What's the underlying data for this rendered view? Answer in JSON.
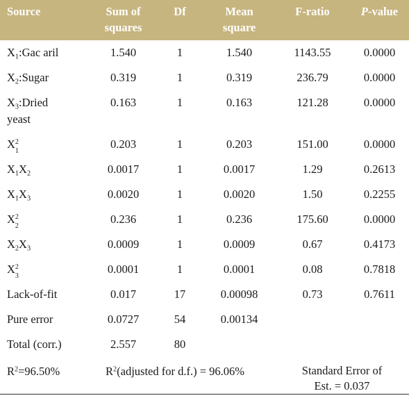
{
  "header": {
    "source": "Source",
    "ss_line1": "Sum of",
    "ss_line2": "squares",
    "df": "Df",
    "ms_line1": "Mean",
    "ms_line2": "square",
    "f": "F-ratio",
    "p_italic": "P",
    "p_rest": "-value"
  },
  "rows": [
    {
      "var": "X",
      "sub": "1",
      "rest": ":Gac aril",
      "ss": "1.540",
      "df": "1",
      "ms": "1.540",
      "f": "1143.55",
      "p": "0.0000"
    },
    {
      "var": "X",
      "sub": "2",
      "rest": ":Sugar",
      "ss": "0.319",
      "df": "1",
      "ms": "0.319",
      "f": "236.79",
      "p": "0.0000"
    },
    {
      "var": "X",
      "sub": "3",
      "rest": ":Dried",
      "rest2": "yeast",
      "ss": "0.163",
      "df": "1",
      "ms": "0.163",
      "f": "121.28",
      "p": "0.0000"
    },
    {
      "var": "X",
      "sub": "1",
      "sup": "2",
      "ss": "0.203",
      "df": "1",
      "ms": "0.203",
      "f": "151.00",
      "p": "0.0000"
    },
    {
      "var": "X",
      "sub": "1",
      "var2": "X",
      "sub2": "2",
      "ss": "0.0017",
      "df": "1",
      "ms": "0.0017",
      "f": "1.29",
      "p": "0.2613"
    },
    {
      "var": "X",
      "sub": "1",
      "var2": "X",
      "sub2": "3",
      "ss": "0.0020",
      "df": "1",
      "ms": "0.0020",
      "f": "1.50",
      "p": "0.2255"
    },
    {
      "var": "X",
      "sub": "2",
      "sup": "2",
      "ss": "0.236",
      "df": "1",
      "ms": "0.236",
      "f": "175.60",
      "p": "0.0000"
    },
    {
      "var": "X",
      "sub": "2",
      "var2": "X",
      "sub2": "3",
      "ss": "0.0009",
      "df": "1",
      "ms": "0.0009",
      "f": "0.67",
      "p": "0.4173"
    },
    {
      "var": "X",
      "sub": "3",
      "sup": "2",
      "ss": "0.0001",
      "df": "1",
      "ms": "0.0001",
      "f": "0.08",
      "p": "0.7818"
    },
    {
      "label": "Lack-of-fit",
      "ss": "0.017",
      "df": "17",
      "ms": "0.00098",
      "f": "0.73",
      "p": "0.7611"
    },
    {
      "label": "Pure error",
      "ss": "0.0727",
      "df": "54",
      "ms": "0.00134",
      "f": "",
      "p": ""
    },
    {
      "label": "Total (corr.)",
      "ss": "2.557",
      "df": "80",
      "ms": "",
      "f": "",
      "p": ""
    }
  ],
  "footer": {
    "r2_prefix": "R",
    "r2_sup": "2",
    "r2_value": "=96.50%",
    "adj_prefix": "R",
    "adj_sup": "2",
    "adj_value": "(adjusted for d.f.) = 96.06%",
    "se_line1": "Standard Error of",
    "se_line2": "Est. = 0.037"
  }
}
